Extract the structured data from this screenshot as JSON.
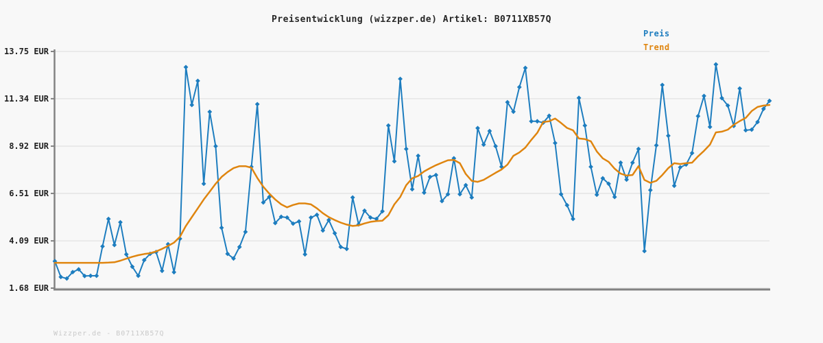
{
  "title": {
    "text": "Preisentwicklung (wizzper.de) Artikel: B0711XB57Q"
  },
  "legend": {
    "position": "top-right",
    "items": [
      {
        "label": "Preis",
        "color": "#1d7dbf"
      },
      {
        "label": "Trend",
        "color": "#df850f"
      }
    ]
  },
  "footer": {
    "text": "Wizzper.de - B0711XB57Q"
  },
  "colors": {
    "background": "#f8f8f8",
    "grid": "#e6e6e6",
    "axis": "#828282",
    "tick_label": "#1f1f1f",
    "price_line": "#1d7dbf",
    "trend_line": "#df850f",
    "watermark": "#c9c9c9"
  },
  "chart_data": {
    "type": "line",
    "title": "Preisentwicklung (wizzper.de) Artikel: B0711XB57Q",
    "xlabel": "",
    "ylabel": "EUR",
    "x_axis": {
      "labels_visible": false
    },
    "grid": true,
    "legend_position": "top-right",
    "ylim": [
      1.68,
      13.75
    ],
    "y_ticks": [
      {
        "value": 13.75,
        "label": "13.75 EUR"
      },
      {
        "value": 11.34,
        "label": "11.34 EUR"
      },
      {
        "value": 8.92,
        "label": "8.92 EUR"
      },
      {
        "value": 6.51,
        "label": "6.51 EUR"
      },
      {
        "value": 4.09,
        "label": "4.09 EUR"
      },
      {
        "value": 1.68,
        "label": "1.68 EUR"
      }
    ],
    "series": [
      {
        "name": "Preis",
        "color": "#1d7dbf",
        "markers": true,
        "line_width": 2,
        "values": [
          3.05,
          2.25,
          2.17,
          2.5,
          2.64,
          2.3,
          2.31,
          2.31,
          3.81,
          5.21,
          3.88,
          5.04,
          3.4,
          2.77,
          2.31,
          3.11,
          3.43,
          3.52,
          2.56,
          3.92,
          2.49,
          4.2,
          12.95,
          11.02,
          12.25,
          7.0,
          10.67,
          8.92,
          4.76,
          3.43,
          3.19,
          3.78,
          4.55,
          7.87,
          11.06,
          6.05,
          6.33,
          5.0,
          5.32,
          5.28,
          4.97,
          5.08,
          3.4,
          5.28,
          5.42,
          4.62,
          5.15,
          4.48,
          3.78,
          3.68,
          6.3,
          4.93,
          5.63,
          5.28,
          5.21,
          5.6,
          9.97,
          8.15,
          12.35,
          8.78,
          6.72,
          8.43,
          6.55,
          7.35,
          7.45,
          6.12,
          6.47,
          8.3,
          6.47,
          6.93,
          6.3,
          9.84,
          9.0,
          9.69,
          8.92,
          7.87,
          11.16,
          10.68,
          11.93,
          12.91,
          10.19,
          10.19,
          10.12,
          10.47,
          9.08,
          6.47,
          5.91,
          5.21,
          11.38,
          9.97,
          7.87,
          6.44,
          7.28,
          7.0,
          6.33,
          8.08,
          7.21,
          8.08,
          8.78,
          3.57,
          6.68,
          8.96,
          12.04,
          9.45,
          6.9,
          7.84,
          7.98,
          8.57,
          10.45,
          11.48,
          9.9,
          13.09,
          11.37,
          10.99,
          9.95,
          11.86,
          9.73,
          9.76,
          10.15,
          10.82,
          11.23
        ]
      },
      {
        "name": "Trend",
        "color": "#df850f",
        "markers": false,
        "line_width": 2.5,
        "values": [
          2.97,
          2.97,
          2.97,
          2.97,
          2.97,
          2.97,
          2.97,
          2.97,
          2.97,
          2.98,
          3.0,
          3.08,
          3.18,
          3.28,
          3.36,
          3.42,
          3.46,
          3.55,
          3.68,
          3.83,
          4.0,
          4.3,
          4.85,
          5.3,
          5.75,
          6.2,
          6.6,
          7.0,
          7.35,
          7.6,
          7.8,
          7.9,
          7.9,
          7.82,
          7.3,
          6.85,
          6.5,
          6.2,
          5.95,
          5.8,
          5.92,
          6.0,
          6.0,
          5.95,
          5.75,
          5.5,
          5.3,
          5.15,
          5.02,
          4.92,
          4.85,
          4.88,
          4.98,
          5.06,
          5.1,
          5.12,
          5.4,
          5.95,
          6.33,
          6.93,
          7.28,
          7.4,
          7.63,
          7.8,
          7.95,
          8.08,
          8.2,
          8.22,
          8.05,
          7.5,
          7.15,
          7.1,
          7.2,
          7.38,
          7.56,
          7.73,
          7.98,
          8.43,
          8.6,
          8.85,
          9.24,
          9.6,
          10.15,
          10.19,
          10.33,
          10.1,
          9.85,
          9.73,
          9.31,
          9.28,
          9.17,
          8.65,
          8.3,
          8.12,
          7.77,
          7.52,
          7.42,
          7.45,
          7.9,
          7.2,
          7.05,
          7.15,
          7.45,
          7.8,
          8.05,
          8.01,
          8.05,
          8.08,
          8.4,
          8.68,
          9.0,
          9.62,
          9.66,
          9.76,
          10.01,
          10.2,
          10.36,
          10.71,
          10.92,
          10.99,
          11.02
        ]
      }
    ]
  }
}
